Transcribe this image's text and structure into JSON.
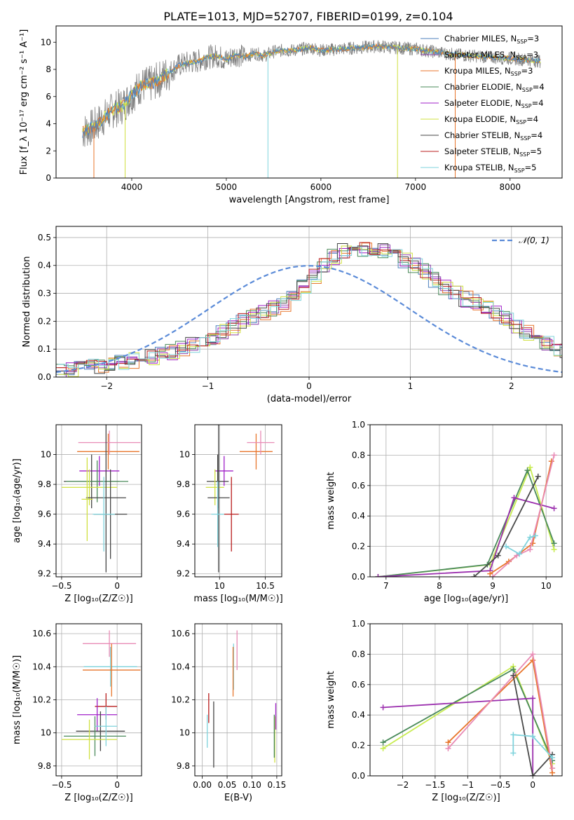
{
  "figure_title": "PLATE=1013, MJD=52707, FIBERID=0199, z=0.104",
  "colors": {
    "Chabrier MILES": "#4f81bd",
    "Salpeter MILES": "#8e44ad",
    "Kroupa MILES": "#e8762c",
    "Chabrier ELODIE": "#4a8a5a",
    "Salpeter ELODIE": "#a020c8",
    "Kroupa ELODIE": "#d0e040",
    "Chabrier STELIB": "#444444",
    "Salpeter STELIB": "#b81c1c",
    "Kroupa STELIB": "#7fd3dc",
    "data": "#808080",
    "normal": "#5b8bd8",
    "grid": "#b0b0b0",
    "line_chabrier": "#4a8a5a",
    "line_salpeter": "#9b2fae",
    "line_kroupa": "#e8762c",
    "line_kroupa_el": "#c8ec50",
    "line_stelib": "#4a4a4a",
    "line_pink": "#e88bb5"
  },
  "chart_data": [
    {
      "id": "spectrum",
      "type": "line",
      "title": "PLATE=1013, MJD=52707, FIBERID=0199, z=0.104",
      "xlabel": "wavelength [Angstrom, rest frame]",
      "ylabel": "Flux [f_λ 10⁻¹⁷ erg cm⁻² s⁻¹ A⁻¹]",
      "xlim": [
        3200,
        8550
      ],
      "ylim": [
        0,
        11.2
      ],
      "xticks": [
        4000,
        5000,
        6000,
        7000,
        8000
      ],
      "yticks": [
        0,
        2,
        4,
        6,
        8,
        10
      ],
      "grid": false,
      "legend_location": "top-right",
      "data_x": [
        3480,
        3600,
        3700,
        3800,
        3900,
        4000,
        4100,
        4200,
        4300,
        4400,
        4500,
        4600,
        4700,
        4800,
        4900,
        5000,
        5100,
        5200,
        5300,
        5400,
        5500,
        5600,
        5700,
        5800,
        5900,
        6000,
        6200,
        6400,
        6600,
        6800,
        7000,
        7200,
        7400,
        7600,
        7800,
        8000,
        8200,
        8320
      ],
      "data_y": [
        3.4,
        3.8,
        4.4,
        5.0,
        5.3,
        6.1,
        6.8,
        6.9,
        7.3,
        7.8,
        8.3,
        8.5,
        8.6,
        8.9,
        9.0,
        8.7,
        9.1,
        8.9,
        9.2,
        9.0,
        9.3,
        9.4,
        9.4,
        9.5,
        9.6,
        9.4,
        9.5,
        9.6,
        9.7,
        9.6,
        9.5,
        9.3,
        9.1,
        9.0,
        8.9,
        8.8,
        8.7,
        8.6
      ],
      "series": [
        {
          "name": "Chabrier MILES, N_SSP=3",
          "label": "Chabrier MILES, N",
          "sub": "SSP",
          "suffix": "=3"
        },
        {
          "name": "Salpeter MILES, N_SSP=3",
          "label": "Salpeter MILES, N",
          "sub": "SSP",
          "suffix": "=3"
        },
        {
          "name": "Kroupa MILES, N_SSP=3",
          "label": "Kroupa MILES, N",
          "sub": "SSP",
          "suffix": "=3"
        },
        {
          "name": "Chabrier ELODIE, N_SSP=4",
          "label": "Chabrier ELODIE, N",
          "sub": "SSP",
          "suffix": "=4"
        },
        {
          "name": "Salpeter ELODIE, N_SSP=4",
          "label": "Salpeter ELODIE, N",
          "sub": "SSP",
          "suffix": "=4"
        },
        {
          "name": "Kroupa ELODIE, N_SSP=4",
          "label": "Kroupa ELODIE, N",
          "sub": "SSP",
          "suffix": "=4"
        },
        {
          "name": "Chabrier STELIB, N_SSP=4",
          "label": "Chabrier STELIB, N",
          "sub": "SSP",
          "suffix": "=4"
        },
        {
          "name": "Salpeter STELIB, N_SSP=5",
          "label": "Salpeter STELIB, N",
          "sub": "SSP",
          "suffix": "=5"
        },
        {
          "name": "Kroupa STELIB, N_SSP=5",
          "label": "Kroupa STELIB, N",
          "sub": "SSP",
          "suffix": "=5"
        }
      ]
    },
    {
      "id": "residuals",
      "type": "line",
      "xlabel": "(data-model)/error",
      "ylabel": "Normed distribution",
      "xlim": [
        -2.5,
        2.5
      ],
      "ylim": [
        0,
        0.54
      ],
      "xticks": [
        -2,
        -1,
        0,
        1,
        2
      ],
      "yticks": [
        0.0,
        0.1,
        0.2,
        0.3,
        0.4,
        0.5
      ],
      "grid": true,
      "legend_location": "top-right",
      "normal_label": "𝒩(0, 1)",
      "bin_width": 0.1,
      "bin_start": -2.5,
      "series_base": [
        0.02,
        0.025,
        0.03,
        0.035,
        0.04,
        0.045,
        0.05,
        0.058,
        0.065,
        0.072,
        0.08,
        0.09,
        0.1,
        0.115,
        0.13,
        0.145,
        0.16,
        0.18,
        0.2,
        0.215,
        0.23,
        0.245,
        0.26,
        0.3,
        0.33,
        0.36,
        0.4,
        0.43,
        0.45,
        0.44,
        0.455,
        0.46,
        0.45,
        0.44,
        0.42,
        0.4,
        0.38,
        0.35,
        0.32,
        0.3,
        0.28,
        0.27,
        0.25,
        0.23,
        0.21,
        0.18,
        0.16,
        0.14,
        0.12,
        0.105,
        0.09,
        0.08,
        0.07,
        0.06,
        0.052,
        0.045,
        0.04,
        0.035,
        0.03,
        0.028
      ]
    },
    {
      "id": "age-vs-Z",
      "type": "scatter",
      "xlabel": "Z [log₁₀(Z/Z☉)]",
      "ylabel": "age  [log₁₀(age/yr)]",
      "xlim": [
        -0.55,
        0.22
      ],
      "ylim": [
        9.18,
        10.2
      ],
      "xticks": [
        -0.5,
        0.0
      ],
      "yticks": [
        9.2,
        9.4,
        9.6,
        9.8,
        10.0
      ],
      "grid": true,
      "points": [
        {
          "s": "Kroupa MILES",
          "x": -0.08,
          "xerr": 0.28,
          "y": 10.02,
          "yerr": 0.12
        },
        {
          "s": "line_pink",
          "x": -0.07,
          "xerr": 0.28,
          "y": 10.08,
          "yerr": 0.08
        },
        {
          "s": "Salpeter ELODIE",
          "x": -0.16,
          "xerr": 0.18,
          "y": 9.89,
          "yerr": 0.1
        },
        {
          "s": "Chabrier STELIB",
          "x": -0.23,
          "xerr": 0.25,
          "y": 9.82,
          "yerr": 0.18
        },
        {
          "s": "Chabrier ELODIE",
          "x": -0.18,
          "xerr": 0.28,
          "y": 9.82,
          "yerr": 0.14
        },
        {
          "s": "Kroupa ELODIE",
          "x": -0.25,
          "xerr": 0.25,
          "y": 9.78,
          "yerr": 0.12
        },
        {
          "s": "Chabrier STELIB",
          "x": -0.1,
          "xerr": 0.18,
          "y": 9.71,
          "yerr": 0.5
        },
        {
          "s": "Chabrier STELIB",
          "x": -0.06,
          "xerr": 0.15,
          "y": 9.6,
          "yerr": 0.3
        },
        {
          "s": "Kroupa STELIB",
          "x": -0.12,
          "xerr": 0.1,
          "y": 9.6,
          "yerr": 0.25
        },
        {
          "s": "Kroupa ELODIE",
          "x": -0.27,
          "xerr": 0.05,
          "y": 9.7,
          "yerr": 0.28
        }
      ]
    },
    {
      "id": "age-vs-mass",
      "type": "scatter",
      "xlabel": "mass [log₁₀(M/M☉)]",
      "xlim": [
        9.73,
        10.68
      ],
      "ylim": [
        9.18,
        10.2
      ],
      "xticks": [
        10.0,
        10.5
      ],
      "yticks": [
        9.2,
        9.4,
        9.6,
        9.8,
        10.0
      ],
      "grid": true,
      "points": [
        {
          "s": "Kroupa MILES",
          "x": 10.4,
          "xerr": 0.18,
          "y": 10.02,
          "yerr": 0.12
        },
        {
          "s": "line_pink",
          "x": 10.45,
          "xerr": 0.15,
          "y": 10.08,
          "yerr": 0.08
        },
        {
          "s": "Salpeter ELODIE",
          "x": 10.05,
          "xerr": 0.1,
          "y": 9.89,
          "yerr": 0.1
        },
        {
          "s": "Chabrier STELIB",
          "x": 9.98,
          "xerr": 0.12,
          "y": 9.82,
          "yerr": 0.18
        },
        {
          "s": "Kroupa ELODIE",
          "x": 9.95,
          "xerr": 0.1,
          "y": 9.78,
          "yerr": 0.12
        },
        {
          "s": "Chabrier STELIB",
          "x": 9.99,
          "xerr": 0.12,
          "y": 9.71,
          "yerr": 0.5
        },
        {
          "s": "Salpeter STELIB",
          "x": 10.13,
          "xerr": 0.08,
          "y": 9.6,
          "yerr": 0.25
        },
        {
          "s": "Kroupa STELIB",
          "x": 9.98,
          "xerr": 0.07,
          "y": 9.6,
          "yerr": 0.22
        }
      ]
    },
    {
      "id": "weight-vs-age",
      "type": "line",
      "xlabel": "age  [log₁₀(age/yr)]",
      "ylabel": "mass weight",
      "xlim": [
        6.7,
        10.3
      ],
      "ylim": [
        0,
        1.0
      ],
      "xticks": [
        7,
        8,
        9,
        10
      ],
      "yticks": [
        0.0,
        0.2,
        0.4,
        0.6,
        0.8,
        1.0
      ],
      "grid": true,
      "lines": [
        {
          "s": "line_kroupa_el",
          "x": [
            6.85,
            8.95,
            9.7,
            10.15
          ],
          "y": [
            0.0,
            0.08,
            0.72,
            0.18
          ]
        },
        {
          "s": "line_chabrier",
          "x": [
            6.85,
            8.9,
            9.65,
            10.15
          ],
          "y": [
            0.0,
            0.08,
            0.7,
            0.22
          ]
        },
        {
          "s": "line_salpeter",
          "x": [
            6.85,
            8.95,
            9.4,
            10.15
          ],
          "y": [
            0.0,
            0.04,
            0.52,
            0.45
          ]
        },
        {
          "s": "line_stelib",
          "x": [
            8.65,
            9.1,
            9.85
          ],
          "y": [
            0.0,
            0.14,
            0.66
          ]
        },
        {
          "s": "line_kroupa",
          "x": [
            8.95,
            9.3,
            9.75,
            10.1
          ],
          "y": [
            0.02,
            0.1,
            0.22,
            0.76
          ]
        },
        {
          "s": "line_pink",
          "x": [
            9.0,
            9.45,
            9.7,
            10.15
          ],
          "y": [
            0.0,
            0.14,
            0.18,
            0.8
          ]
        },
        {
          "s": "Kroupa STELIB",
          "x": [
            9.25,
            9.5,
            9.7,
            9.8
          ],
          "y": [
            0.2,
            0.15,
            0.26,
            0.27
          ]
        }
      ]
    },
    {
      "id": "mass-vs-Z",
      "type": "scatter",
      "xlabel": "Z [log₁₀(Z/Z☉)]",
      "ylabel": "mass [log₁₀(M/M☉)]",
      "xlim": [
        -0.55,
        0.22
      ],
      "ylim": [
        9.74,
        10.66
      ],
      "xticks": [
        -0.5,
        0.0
      ],
      "yticks": [
        9.8,
        10.0,
        10.2,
        10.4,
        10.6
      ],
      "grid": true,
      "points": [
        {
          "s": "line_pink",
          "x": -0.07,
          "xerr": 0.24,
          "y": 10.54,
          "yerr": 0.08
        },
        {
          "s": "Kroupa STELIB",
          "x": -0.06,
          "xerr": 0.24,
          "y": 10.4,
          "yerr": 0.12
        },
        {
          "s": "Kroupa MILES",
          "x": -0.05,
          "xerr": 0.26,
          "y": 10.38,
          "yerr": 0.16
        },
        {
          "s": "Salpeter STELIB",
          "x": -0.1,
          "xerr": 0.1,
          "y": 10.16,
          "yerr": 0.08
        },
        {
          "s": "Salpeter ELODIE",
          "x": -0.18,
          "xerr": 0.18,
          "y": 10.11,
          "yerr": 0.1
        },
        {
          "s": "Chabrier STELIB",
          "x": -0.15,
          "xerr": 0.22,
          "y": 10.01,
          "yerr": 0.12
        },
        {
          "s": "Chabrier ELODIE",
          "x": -0.2,
          "xerr": 0.28,
          "y": 9.98,
          "yerr": 0.12
        },
        {
          "s": "Kroupa ELODIE",
          "x": -0.25,
          "xerr": 0.25,
          "y": 9.96,
          "yerr": 0.12
        },
        {
          "s": "Kroupa STELIB",
          "x": -0.1,
          "xerr": 0.1,
          "y": 10.04,
          "yerr": 0.12
        }
      ]
    },
    {
      "id": "mass-vs-EBV",
      "type": "scatter",
      "xlabel": "E(B-V)",
      "xlim": [
        -0.015,
        0.16
      ],
      "ylim": [
        9.74,
        10.66
      ],
      "xticks": [
        0.0,
        0.05,
        0.1,
        0.15
      ],
      "xtick_labels": [
        "0.00",
        "0.05",
        "0.10",
        "0.15"
      ],
      "yticks": [
        9.8,
        10.0,
        10.2,
        10.4,
        10.6
      ],
      "grid": true,
      "points": [
        {
          "s": "line_pink",
          "x": 0.07,
          "xerr": 0.0,
          "y": 10.5,
          "yerr": 0.12
        },
        {
          "s": "Kroupa STELIB",
          "x": 0.063,
          "xerr": 0.0,
          "y": 10.4,
          "yerr": 0.14
        },
        {
          "s": "Kroupa MILES",
          "x": 0.062,
          "xerr": 0.0,
          "y": 10.37,
          "yerr": 0.15
        },
        {
          "s": "Salpeter STELIB",
          "x": 0.013,
          "xerr": 0.0,
          "y": 10.15,
          "yerr": 0.09
        },
        {
          "s": "Kroupa STELIB",
          "x": 0.01,
          "xerr": 0.0,
          "y": 10.01,
          "yerr": 0.1
        },
        {
          "s": "Chabrier STELIB",
          "x": 0.023,
          "xerr": 0.0,
          "y": 9.99,
          "yerr": 0.2
        },
        {
          "s": "Salpeter ELODIE",
          "x": 0.148,
          "xerr": 0.0,
          "y": 10.1,
          "yerr": 0.08
        },
        {
          "s": "Kroupa ELODIE",
          "x": 0.146,
          "xerr": 0.0,
          "y": 9.96,
          "yerr": 0.14
        },
        {
          "s": "Chabrier ELODIE",
          "x": 0.145,
          "xerr": 0.0,
          "y": 9.98,
          "yerr": 0.13
        }
      ]
    },
    {
      "id": "weight-vs-Z",
      "type": "line",
      "xlabel": "Z [log₁₀(Z/Z☉)]",
      "ylabel": "mass weight",
      "xlim": [
        -2.5,
        0.45
      ],
      "ylim": [
        0,
        1.0
      ],
      "xticks": [
        -2.0,
        -1.5,
        -1.0,
        -0.5,
        0.0
      ],
      "yticks": [
        0.0,
        0.2,
        0.4,
        0.6,
        0.8,
        1.0
      ],
      "grid": true,
      "lines": [
        {
          "s": "line_kroupa_el",
          "x": [
            -2.3,
            -0.3,
            0.3,
            0.3
          ],
          "y": [
            0.18,
            0.72,
            0.08,
            0.05
          ]
        },
        {
          "s": "line_chabrier",
          "x": [
            -2.3,
            -0.3,
            0.3
          ],
          "y": [
            0.22,
            0.7,
            0.1
          ]
        },
        {
          "s": "line_salpeter",
          "x": [
            -2.3,
            0.0,
            0.0
          ],
          "y": [
            0.45,
            0.51,
            0.0
          ]
        },
        {
          "s": "line_kroupa",
          "x": [
            -1.3,
            0.0,
            0.3
          ],
          "y": [
            0.22,
            0.76,
            0.02
          ]
        },
        {
          "s": "line_pink",
          "x": [
            -1.3,
            0.0,
            0.3
          ],
          "y": [
            0.18,
            0.8,
            0.05
          ]
        },
        {
          "s": "line_stelib",
          "x": [
            -0.3,
            0.0,
            0.3
          ],
          "y": [
            0.66,
            0.0,
            0.14
          ]
        },
        {
          "s": "Kroupa STELIB",
          "x": [
            -0.3,
            -0.3,
            0.0,
            0.3
          ],
          "y": [
            0.15,
            0.27,
            0.26,
            0.12
          ]
        }
      ]
    }
  ]
}
